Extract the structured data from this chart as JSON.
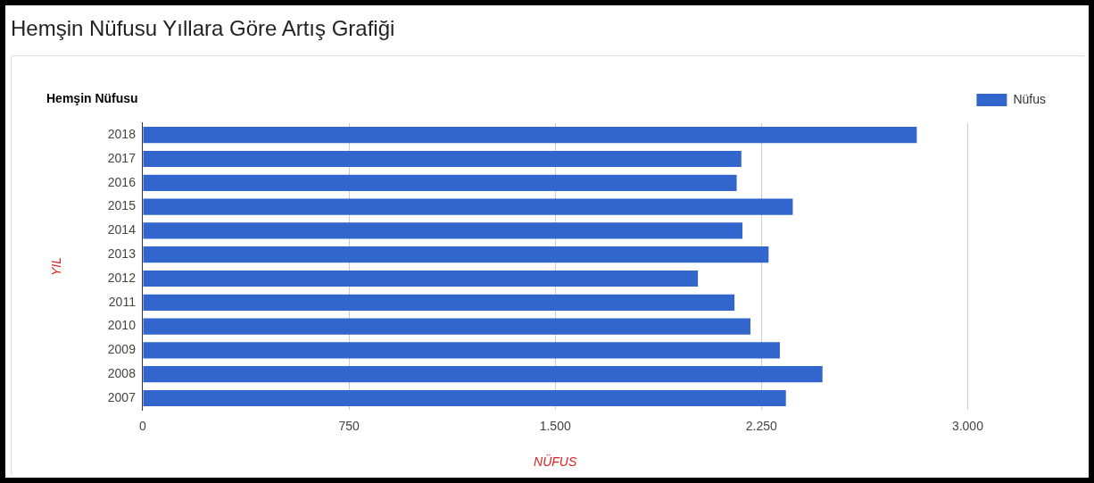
{
  "chart_data": {
    "type": "bar",
    "orientation": "horizontal",
    "title": "Hemşin Nüfusu Yıllara Göre Artış Grafiği",
    "subtitle": "Hemşin Nüfusu",
    "xlabel": "NÜFUS",
    "ylabel": "YIL",
    "categories": [
      "2018",
      "2017",
      "2016",
      "2015",
      "2014",
      "2013",
      "2012",
      "2011",
      "2010",
      "2009",
      "2008",
      "2007"
    ],
    "series": [
      {
        "name": "Nüfus",
        "color": "#3366cc",
        "values": [
          2815,
          2177,
          2160,
          2364,
          2181,
          2276,
          2019,
          2152,
          2210,
          2317,
          2472,
          2339
        ]
      }
    ],
    "xlim": [
      0,
      3000
    ],
    "xticks": [
      0,
      750,
      {
        "value": 1500,
        "label": "1.500"
      },
      {
        "value": 2250,
        "label": "2.250"
      },
      {
        "value": 3000,
        "label": "3.000"
      }
    ],
    "grid": "x",
    "legend": "right"
  }
}
